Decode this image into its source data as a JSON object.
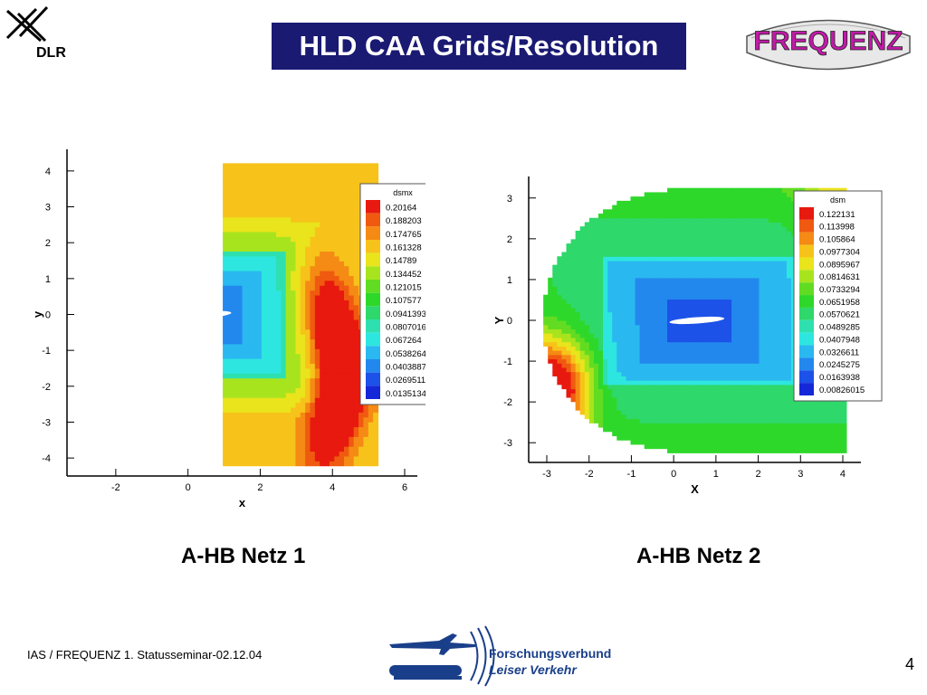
{
  "header": {
    "org_logo_text": "DLR",
    "title": "HLD CAA Grids/Resolution",
    "project_logo_text": "FREQUENZ"
  },
  "chart_data": [
    {
      "type": "heatmap",
      "variable": "dsmx",
      "xlabel": "x",
      "ylabel": "y",
      "xlim": [
        -3.2,
        6.2
      ],
      "ylim": [
        -4.35,
        4.35
      ],
      "x_ticks": [
        -2,
        0,
        2,
        4,
        6
      ],
      "y_ticks": [
        4,
        3,
        2,
        1,
        0,
        -1,
        -2,
        -3,
        -4
      ],
      "legend_title": "dsmx",
      "legend_levels": [
        "0.20164",
        "0.188203",
        "0.174765",
        "0.161328",
        "0.14789",
        "0.134452",
        "0.121015",
        "0.107577",
        "0.0941393",
        "0.0807016",
        "0.067264",
        "0.0538264",
        "0.0403887",
        "0.0269511",
        "0.0135134"
      ],
      "legend_placement": "top-right",
      "caption": "A-HB Netz 1"
    },
    {
      "type": "heatmap",
      "variable": "dsm",
      "xlabel": "X",
      "ylabel": "Y",
      "xlim": [
        -3.3,
        4.3
      ],
      "ylim": [
        -3.35,
        3.35
      ],
      "x_ticks": [
        -3,
        -2,
        -1,
        0,
        1,
        2,
        3,
        4
      ],
      "y_ticks": [
        3,
        2,
        1,
        0,
        -1,
        -2,
        -3
      ],
      "legend_title": "dsm",
      "legend_levels": [
        "0.122131",
        "0.113998",
        "0.105864",
        "0.0977304",
        "0.0895967",
        "0.0814631",
        "0.0733294",
        "0.0651958",
        "0.0570621",
        "0.0489285",
        "0.0407948",
        "0.0326611",
        "0.0245275",
        "0.0163938",
        "0.00826015"
      ],
      "legend_placement": "top-right",
      "caption": "A-HB Netz 2"
    }
  ],
  "palette": [
    "#e8190f",
    "#f05a10",
    "#f58a14",
    "#f7c31a",
    "#e9e41c",
    "#a8e41e",
    "#62dc22",
    "#2ed82a",
    "#2ed86a",
    "#2ee0b0",
    "#2ee6e0",
    "#2ab8f0",
    "#2288ee",
    "#1c52e8",
    "#1428d8"
  ],
  "footer": {
    "left_text": "IAS / FREQUENZ  1. Statusseminar-02.12.04",
    "consortium_line1": "Forschungsverbund",
    "consortium_line2": "Leiser Verkehr",
    "page_number": "4"
  }
}
